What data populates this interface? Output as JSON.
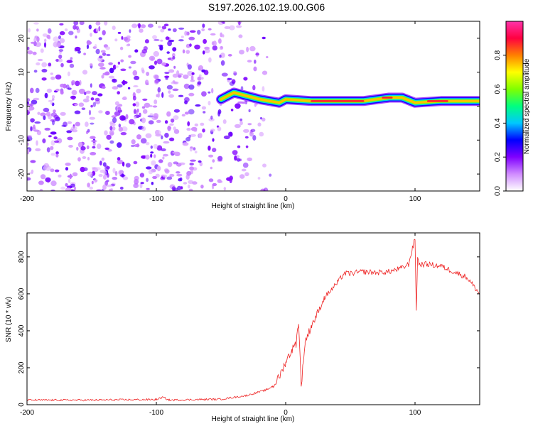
{
  "title": "S197.2026.102.19.00.G06",
  "chart_data": [
    {
      "type": "heatmap",
      "xlabel": "Height of straight line (km)",
      "ylabel": "Frequency (Hz)",
      "xlim": [
        -200,
        150
      ],
      "ylim": [
        -25,
        25
      ],
      "x_ticks": [
        -200,
        -100,
        0,
        100
      ],
      "y_ticks": [
        -20,
        -10,
        0,
        10,
        20
      ],
      "colorbar": {
        "label": "Normalized spectral amplitude",
        "range": [
          0,
          1
        ],
        "ticks": [
          "0.0",
          "0.2",
          "0.4",
          "0.6",
          "0.8"
        ],
        "colormap": [
          "#ffffff",
          "#d08cff",
          "#8000ff",
          "#0000ff",
          "#00c8ff",
          "#00ff80",
          "#80ff00",
          "#ffff00",
          "#ff8000",
          "#ff0040",
          "#ff33aa"
        ]
      },
      "signal_ridge": {
        "description_points": [
          {
            "x": -50,
            "y": 2
          },
          {
            "x": -40,
            "y": 4
          },
          {
            "x": -30,
            "y": 3
          },
          {
            "x": -20,
            "y": 2
          },
          {
            "x": -5,
            "y": 1
          },
          {
            "x": 0,
            "y": 2
          },
          {
            "x": 20,
            "y": 1.5
          },
          {
            "x": 60,
            "y": 1.5
          },
          {
            "x": 80,
            "y": 2.5
          },
          {
            "x": 90,
            "y": 2.5
          },
          {
            "x": 100,
            "y": 1
          },
          {
            "x": 120,
            "y": 1.5
          },
          {
            "x": 150,
            "y": 1.5
          }
        ],
        "peak_amplitude": 1.0
      },
      "noise_region": {
        "x_range": [
          -200,
          -40
        ],
        "y_range": [
          -25,
          25
        ],
        "amplitude": 0.2
      }
    },
    {
      "type": "line",
      "xlabel": "Height of straight line (km)",
      "ylabel": "SNR (10 * v/v)",
      "xlim": [
        -200,
        150
      ],
      "ylim": [
        0,
        930
      ],
      "x_ticks": [
        -200,
        -100,
        0,
        100
      ],
      "y_ticks": [
        0,
        200,
        400,
        600,
        800
      ],
      "series": [
        {
          "name": "SNR",
          "color": "#ee2222",
          "x": [
            -200,
            -150,
            -100,
            -95,
            -90,
            -50,
            -30,
            -20,
            -15,
            -10,
            -5,
            0,
            5,
            8,
            10,
            12,
            15,
            20,
            25,
            30,
            40,
            45,
            50,
            60,
            70,
            80,
            90,
            95,
            100,
            101,
            102,
            103,
            110,
            120,
            130,
            140,
            150
          ],
          "values": [
            25,
            25,
            28,
            40,
            25,
            30,
            50,
            70,
            80,
            100,
            150,
            230,
            300,
            330,
            450,
            100,
            340,
            430,
            500,
            580,
            660,
            710,
            710,
            720,
            715,
            720,
            740,
            760,
            900,
            500,
            800,
            760,
            760,
            750,
            720,
            690,
            600
          ]
        }
      ]
    }
  ]
}
